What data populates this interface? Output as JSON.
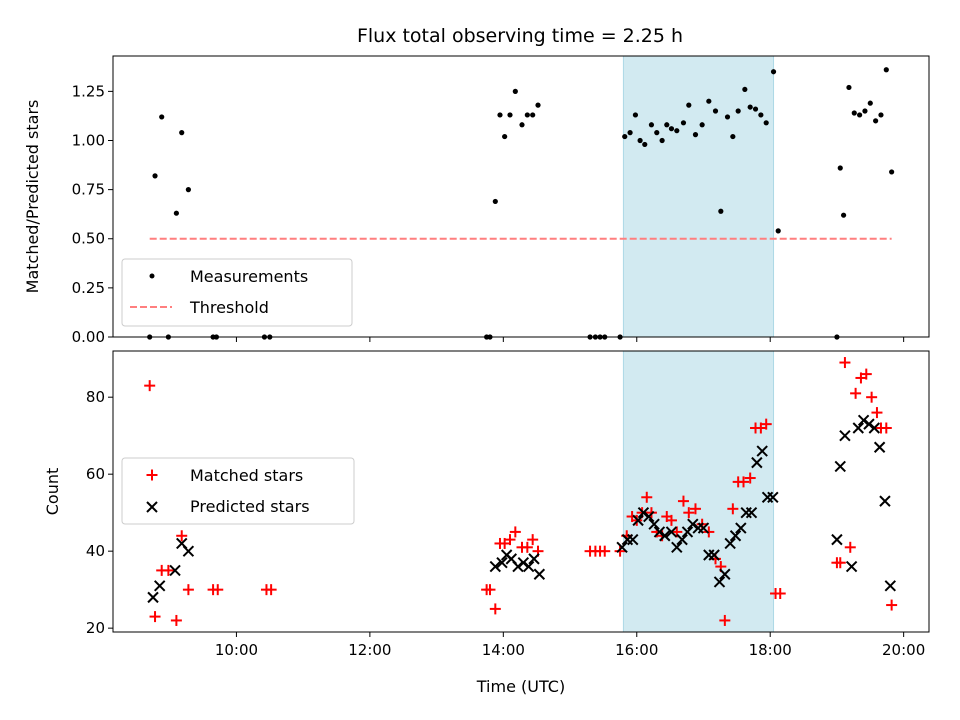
{
  "figure_title": "Flux total observing time = 2.25 h",
  "colors": {
    "measurement": "#000000",
    "threshold": "#ff7f7f",
    "matched": "#ff0000",
    "predicted": "#000000",
    "highlight": "#add8e6"
  },
  "chart_data": [
    {
      "type": "scatter",
      "title": "Flux total observing time = 2.25 h",
      "ylabel": "Matched/Predicted stars",
      "xlabel": "",
      "xlim": [
        8.15,
        20.38
      ],
      "ylim": [
        0,
        1.43
      ],
      "xticks": [
        10,
        12,
        14,
        16,
        18,
        20
      ],
      "xtick_labels": [
        "",
        "",
        "",
        "",
        "",
        ""
      ],
      "yticks": [
        0,
        0.25,
        0.5,
        0.75,
        1.0,
        1.25
      ],
      "ytick_labels": [
        "0.00",
        "0.25",
        "0.50",
        "0.75",
        "1.00",
        "1.25"
      ],
      "highlight_span": [
        15.8,
        18.05
      ],
      "legend": {
        "position": "lower-left",
        "entries": [
          "Measurements",
          "Threshold"
        ]
      },
      "series": [
        {
          "name": "Measurements",
          "marker": "dot",
          "x": [
            8.7,
            8.78,
            8.88,
            8.98,
            9.1,
            9.18,
            9.28,
            9.65,
            9.7,
            10.42,
            10.5,
            13.75,
            13.8,
            13.88,
            13.95,
            14.02,
            14.1,
            14.18,
            14.28,
            14.36,
            14.44,
            14.52,
            15.3,
            15.38,
            15.45,
            15.52,
            15.75,
            15.82,
            15.9,
            15.98,
            16.05,
            16.12,
            16.22,
            16.3,
            16.38,
            16.45,
            16.52,
            16.6,
            16.7,
            16.78,
            16.88,
            16.98,
            17.08,
            17.18,
            17.26,
            17.36,
            17.44,
            17.52,
            17.62,
            17.7,
            17.78,
            17.86,
            17.94,
            18.05,
            18.12,
            19.0,
            19.05,
            19.1,
            19.18,
            19.26,
            19.34,
            19.42,
            19.5,
            19.58,
            19.66,
            19.74,
            19.82
          ],
          "y": [
            0,
            0.82,
            1.12,
            0,
            0.63,
            1.04,
            0.75,
            0,
            0,
            0,
            0,
            0,
            0,
            0.69,
            1.13,
            1.02,
            1.13,
            1.25,
            1.08,
            1.13,
            1.13,
            1.18,
            0,
            0,
            0,
            0,
            0,
            1.02,
            1.04,
            1.13,
            1.0,
            0.98,
            1.08,
            1.04,
            1.0,
            1.08,
            1.06,
            1.05,
            1.09,
            1.18,
            1.03,
            1.08,
            1.2,
            1.15,
            0.64,
            1.12,
            1.02,
            1.15,
            1.26,
            1.17,
            1.16,
            1.13,
            1.09,
            1.35,
            0.54,
            0,
            0.86,
            0.62,
            1.27,
            1.14,
            1.13,
            1.15,
            1.19,
            1.1,
            1.13,
            1.36,
            0.84
          ]
        },
        {
          "name": "Threshold",
          "style": "dashed",
          "x": [
            8.7,
            19.82
          ],
          "y": [
            0.5,
            0.5
          ]
        }
      ]
    },
    {
      "type": "scatter",
      "ylabel": "Count",
      "xlabel": "Time (UTC)",
      "xlim": [
        8.15,
        20.38
      ],
      "ylim": [
        19,
        92
      ],
      "xticks": [
        10,
        12,
        14,
        16,
        18,
        20
      ],
      "xtick_labels": [
        "10:00",
        "12:00",
        "14:00",
        "16:00",
        "18:00",
        "20:00"
      ],
      "yticks": [
        20,
        40,
        60,
        80
      ],
      "ytick_labels": [
        "20",
        "40",
        "60",
        "80"
      ],
      "highlight_span": [
        15.8,
        18.05
      ],
      "legend": {
        "position": "center-left",
        "entries": [
          "Matched stars",
          "Predicted stars"
        ]
      },
      "series": [
        {
          "name": "Matched stars",
          "marker": "plus",
          "x": [
            8.7,
            8.78,
            8.88,
            8.98,
            9.1,
            9.18,
            9.28,
            9.65,
            9.72,
            10.45,
            10.52,
            13.75,
            13.8,
            13.88,
            13.95,
            14.02,
            14.1,
            14.18,
            14.28,
            14.36,
            14.44,
            14.52,
            15.3,
            15.38,
            15.45,
            15.52,
            15.75,
            15.85,
            15.93,
            16.0,
            16.08,
            16.15,
            16.22,
            16.3,
            16.38,
            16.45,
            16.52,
            16.6,
            16.7,
            16.78,
            16.88,
            16.98,
            17.08,
            17.18,
            17.26,
            17.32,
            17.44,
            17.52,
            17.6,
            17.7,
            17.78,
            17.86,
            17.94,
            18.08,
            18.15,
            19.0,
            19.05,
            19.12,
            19.2,
            19.28,
            19.36,
            19.44,
            19.52,
            19.6,
            19.66,
            19.74,
            19.82
          ],
          "y": [
            83,
            23,
            35,
            35,
            22,
            44,
            30,
            30,
            30,
            30,
            30,
            30,
            30,
            25,
            42,
            42,
            43,
            45,
            41,
            41,
            43,
            40,
            40,
            40,
            40,
            40,
            40,
            44,
            49,
            48,
            50,
            54,
            50,
            45,
            44,
            49,
            48,
            45,
            53,
            50,
            51,
            47,
            45,
            38,
            36,
            22,
            51,
            58,
            58,
            59,
            72,
            72,
            73,
            29,
            29,
            37,
            37,
            89,
            41,
            81,
            85,
            86,
            80,
            76,
            72,
            72,
            26
          ]
        },
        {
          "name": "Predicted stars",
          "marker": "x",
          "x": [
            8.75,
            8.85,
            9.08,
            9.18,
            9.28,
            13.88,
            13.98,
            14.05,
            14.12,
            14.22,
            14.3,
            14.38,
            14.46,
            14.54,
            15.78,
            15.86,
            15.94,
            16.02,
            16.1,
            16.18,
            16.26,
            16.34,
            16.42,
            16.52,
            16.6,
            16.68,
            16.76,
            16.84,
            16.92,
            17.0,
            17.08,
            17.16,
            17.24,
            17.32,
            17.4,
            17.48,
            17.56,
            17.64,
            17.72,
            17.8,
            17.88,
            17.96,
            18.04,
            19.0,
            19.05,
            19.12,
            19.22,
            19.32,
            19.4,
            19.48,
            19.56,
            19.64,
            19.72,
            19.8
          ],
          "y": [
            28,
            31,
            35,
            42,
            40,
            36,
            37,
            39,
            38,
            36,
            37,
            36,
            38,
            34,
            41,
            43,
            43,
            48,
            50,
            49,
            47,
            45,
            44,
            45,
            41,
            43,
            45,
            47,
            46,
            46,
            39,
            39,
            32,
            34,
            42,
            44,
            46,
            50,
            50,
            63,
            66,
            54,
            54,
            43,
            62,
            70,
            36,
            72,
            74,
            73,
            72,
            67,
            53,
            31
          ]
        }
      ]
    }
  ]
}
